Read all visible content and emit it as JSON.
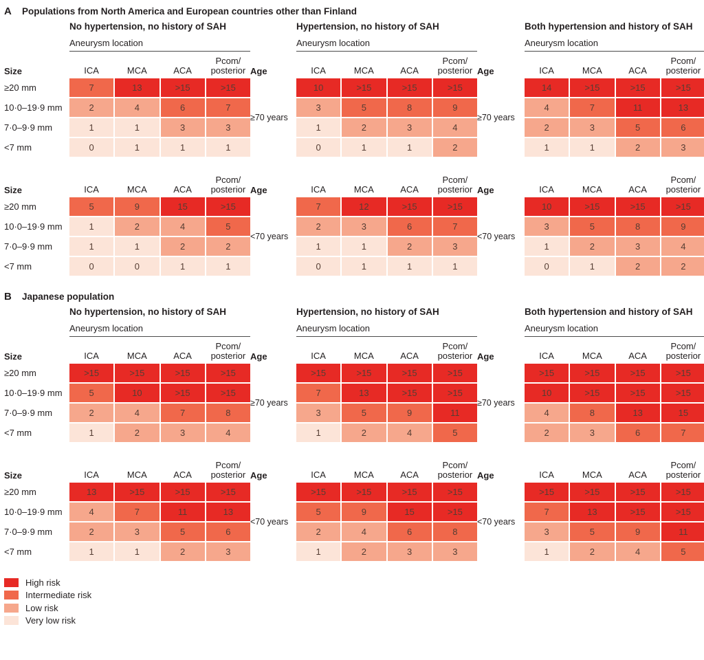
{
  "colors": {
    "h": "#e72a25",
    "i": "#f0684b",
    "l": "#f6a78c",
    "v": "#fce4d8"
  },
  "legend": [
    {
      "label": "High risk",
      "risk": "h"
    },
    {
      "label": "Intermediate risk",
      "risk": "i"
    },
    {
      "label": "Low risk",
      "risk": "l"
    },
    {
      "label": "Very low risk",
      "risk": "v"
    }
  ],
  "labels": {
    "size": "Size",
    "age": "Age",
    "aneurysm_location": "Aneurysm location",
    "column_display": [
      "ICA",
      "MCA",
      "ACA",
      "Pcom/\nposterior"
    ]
  },
  "chart_data": {
    "type": "heatmap",
    "columns": [
      "ICA",
      "MCA",
      "ACA",
      "Pcom/posterior"
    ],
    "rows": [
      "≥20 mm",
      "10·0–19·9 mm",
      "7·0–9·9 mm",
      "<7 mm"
    ],
    "risk_levels": {
      "h": "High risk",
      "i": "Intermediate risk",
      "l": "Low risk",
      "v": "Very low risk"
    },
    "panels": [
      {
        "label": "A",
        "title": "Populations from North America and European countries other than Finland",
        "groups": [
          "No hypertension, no history of SAH",
          "Hypertension, no history of SAH",
          "Both hypertension and history of SAH"
        ],
        "age_blocks": [
          {
            "age": "≥70 years",
            "tables": [
              {
                "values": [
                  [
                    "7",
                    "13",
                    ">15",
                    ">15"
                  ],
                  [
                    "2",
                    "4",
                    "6",
                    "7"
                  ],
                  [
                    "1",
                    "1",
                    "3",
                    "3"
                  ],
                  [
                    "0",
                    "1",
                    "1",
                    "1"
                  ]
                ],
                "risks": [
                  [
                    "i",
                    "h",
                    "h",
                    "h"
                  ],
                  [
                    "l",
                    "l",
                    "i",
                    "i"
                  ],
                  [
                    "v",
                    "v",
                    "l",
                    "l"
                  ],
                  [
                    "v",
                    "v",
                    "v",
                    "v"
                  ]
                ]
              },
              {
                "values": [
                  [
                    "10",
                    ">15",
                    ">15",
                    ">15"
                  ],
                  [
                    "3",
                    "5",
                    "8",
                    "9"
                  ],
                  [
                    "1",
                    "2",
                    "3",
                    "4"
                  ],
                  [
                    "0",
                    "1",
                    "1",
                    "2"
                  ]
                ],
                "risks": [
                  [
                    "h",
                    "h",
                    "h",
                    "h"
                  ],
                  [
                    "l",
                    "i",
                    "i",
                    "i"
                  ],
                  [
                    "v",
                    "l",
                    "l",
                    "l"
                  ],
                  [
                    "v",
                    "v",
                    "v",
                    "l"
                  ]
                ]
              },
              {
                "values": [
                  [
                    "14",
                    ">15",
                    ">15",
                    ">15"
                  ],
                  [
                    "4",
                    "7",
                    "11",
                    "13"
                  ],
                  [
                    "2",
                    "3",
                    "5",
                    "6"
                  ],
                  [
                    "1",
                    "1",
                    "2",
                    "3"
                  ]
                ],
                "risks": [
                  [
                    "h",
                    "h",
                    "h",
                    "h"
                  ],
                  [
                    "l",
                    "i",
                    "h",
                    "h"
                  ],
                  [
                    "l",
                    "l",
                    "i",
                    "i"
                  ],
                  [
                    "v",
                    "v",
                    "l",
                    "l"
                  ]
                ]
              }
            ]
          },
          {
            "age": "<70 years",
            "tables": [
              {
                "values": [
                  [
                    "5",
                    "9",
                    "15",
                    ">15"
                  ],
                  [
                    "1",
                    "2",
                    "4",
                    "5"
                  ],
                  [
                    "1",
                    "1",
                    "2",
                    "2"
                  ],
                  [
                    "0",
                    "0",
                    "1",
                    "1"
                  ]
                ],
                "risks": [
                  [
                    "i",
                    "i",
                    "h",
                    "h"
                  ],
                  [
                    "v",
                    "l",
                    "l",
                    "i"
                  ],
                  [
                    "v",
                    "v",
                    "l",
                    "l"
                  ],
                  [
                    "v",
                    "v",
                    "v",
                    "v"
                  ]
                ]
              },
              {
                "values": [
                  [
                    "7",
                    "12",
                    ">15",
                    ">15"
                  ],
                  [
                    "2",
                    "3",
                    "6",
                    "7"
                  ],
                  [
                    "1",
                    "1",
                    "2",
                    "3"
                  ],
                  [
                    "0",
                    "1",
                    "1",
                    "1"
                  ]
                ],
                "risks": [
                  [
                    "i",
                    "h",
                    "h",
                    "h"
                  ],
                  [
                    "l",
                    "l",
                    "i",
                    "i"
                  ],
                  [
                    "v",
                    "v",
                    "l",
                    "l"
                  ],
                  [
                    "v",
                    "v",
                    "v",
                    "v"
                  ]
                ]
              },
              {
                "values": [
                  [
                    "10",
                    ">15",
                    ">15",
                    ">15"
                  ],
                  [
                    "3",
                    "5",
                    "8",
                    "9"
                  ],
                  [
                    "1",
                    "2",
                    "3",
                    "4"
                  ],
                  [
                    "0",
                    "1",
                    "2",
                    "2"
                  ]
                ],
                "risks": [
                  [
                    "h",
                    "h",
                    "h",
                    "h"
                  ],
                  [
                    "l",
                    "i",
                    "i",
                    "i"
                  ],
                  [
                    "v",
                    "l",
                    "l",
                    "l"
                  ],
                  [
                    "v",
                    "v",
                    "l",
                    "l"
                  ]
                ]
              }
            ]
          }
        ]
      },
      {
        "label": "B",
        "title": "Japanese population",
        "groups": [
          "No hypertension, no history of SAH",
          "Hypertension, no history of SAH",
          "Both hypertension and history of SAH"
        ],
        "age_blocks": [
          {
            "age": "≥70 years",
            "tables": [
              {
                "values": [
                  [
                    ">15",
                    ">15",
                    ">15",
                    ">15"
                  ],
                  [
                    "5",
                    "10",
                    ">15",
                    ">15"
                  ],
                  [
                    "2",
                    "4",
                    "7",
                    "8"
                  ],
                  [
                    "1",
                    "2",
                    "3",
                    "4"
                  ]
                ],
                "risks": [
                  [
                    "h",
                    "h",
                    "h",
                    "h"
                  ],
                  [
                    "i",
                    "h",
                    "h",
                    "h"
                  ],
                  [
                    "l",
                    "l",
                    "i",
                    "i"
                  ],
                  [
                    "v",
                    "l",
                    "l",
                    "l"
                  ]
                ]
              },
              {
                "values": [
                  [
                    ">15",
                    ">15",
                    ">15",
                    ">15"
                  ],
                  [
                    "7",
                    "13",
                    ">15",
                    ">15"
                  ],
                  [
                    "3",
                    "5",
                    "9",
                    "11"
                  ],
                  [
                    "1",
                    "2",
                    "4",
                    "5"
                  ]
                ],
                "risks": [
                  [
                    "h",
                    "h",
                    "h",
                    "h"
                  ],
                  [
                    "i",
                    "h",
                    "h",
                    "h"
                  ],
                  [
                    "l",
                    "i",
                    "i",
                    "h"
                  ],
                  [
                    "v",
                    "l",
                    "l",
                    "i"
                  ]
                ]
              },
              {
                "values": [
                  [
                    ">15",
                    ">15",
                    ">15",
                    ">15"
                  ],
                  [
                    "10",
                    ">15",
                    ">15",
                    ">15"
                  ],
                  [
                    "4",
                    "8",
                    "13",
                    "15"
                  ],
                  [
                    "2",
                    "3",
                    "6",
                    "7"
                  ]
                ],
                "risks": [
                  [
                    "h",
                    "h",
                    "h",
                    "h"
                  ],
                  [
                    "h",
                    "h",
                    "h",
                    "h"
                  ],
                  [
                    "l",
                    "i",
                    "h",
                    "h"
                  ],
                  [
                    "l",
                    "l",
                    "i",
                    "i"
                  ]
                ]
              }
            ]
          },
          {
            "age": "<70 years",
            "tables": [
              {
                "values": [
                  [
                    "13",
                    ">15",
                    ">15",
                    ">15"
                  ],
                  [
                    "4",
                    "7",
                    "11",
                    "13"
                  ],
                  [
                    "2",
                    "3",
                    "5",
                    "6"
                  ],
                  [
                    "1",
                    "1",
                    "2",
                    "3"
                  ]
                ],
                "risks": [
                  [
                    "h",
                    "h",
                    "h",
                    "h"
                  ],
                  [
                    "l",
                    "i",
                    "h",
                    "h"
                  ],
                  [
                    "l",
                    "l",
                    "i",
                    "i"
                  ],
                  [
                    "v",
                    "v",
                    "l",
                    "l"
                  ]
                ]
              },
              {
                "values": [
                  [
                    ">15",
                    ">15",
                    ">15",
                    ">15"
                  ],
                  [
                    "5",
                    "9",
                    "15",
                    ">15"
                  ],
                  [
                    "2",
                    "4",
                    "6",
                    "8"
                  ],
                  [
                    "1",
                    "2",
                    "3",
                    "3"
                  ]
                ],
                "risks": [
                  [
                    "h",
                    "h",
                    "h",
                    "h"
                  ],
                  [
                    "i",
                    "i",
                    "h",
                    "h"
                  ],
                  [
                    "l",
                    "l",
                    "i",
                    "i"
                  ],
                  [
                    "v",
                    "l",
                    "l",
                    "l"
                  ]
                ]
              },
              {
                "values": [
                  [
                    ">15",
                    ">15",
                    ">15",
                    ">15"
                  ],
                  [
                    "7",
                    "13",
                    ">15",
                    ">15"
                  ],
                  [
                    "3",
                    "5",
                    "9",
                    "11"
                  ],
                  [
                    "1",
                    "2",
                    "4",
                    "5"
                  ]
                ],
                "risks": [
                  [
                    "h",
                    "h",
                    "h",
                    "h"
                  ],
                  [
                    "i",
                    "h",
                    "h",
                    "h"
                  ],
                  [
                    "l",
                    "i",
                    "i",
                    "h"
                  ],
                  [
                    "v",
                    "l",
                    "l",
                    "i"
                  ]
                ]
              }
            ]
          }
        ]
      }
    ]
  }
}
